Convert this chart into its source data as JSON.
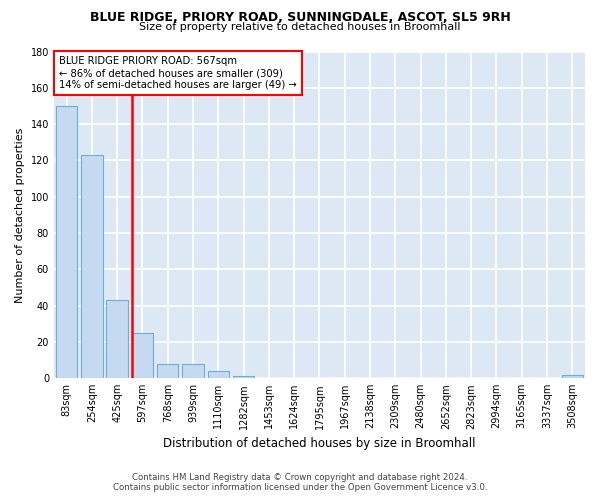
{
  "title": "BLUE RIDGE, PRIORY ROAD, SUNNINGDALE, ASCOT, SL5 9RH",
  "subtitle": "Size of property relative to detached houses in Broomhall",
  "xlabel": "Distribution of detached houses by size in Broomhall",
  "ylabel": "Number of detached properties",
  "bar_labels": [
    "83sqm",
    "254sqm",
    "425sqm",
    "597sqm",
    "768sqm",
    "939sqm",
    "1110sqm",
    "1282sqm",
    "1453sqm",
    "1624sqm",
    "1795sqm",
    "1967sqm",
    "2138sqm",
    "2309sqm",
    "2480sqm",
    "2652sqm",
    "2823sqm",
    "2994sqm",
    "3165sqm",
    "3337sqm",
    "3508sqm"
  ],
  "bar_values": [
    150,
    123,
    43,
    25,
    8,
    8,
    4,
    1,
    0,
    0,
    0,
    0,
    0,
    0,
    0,
    0,
    0,
    0,
    0,
    0,
    2
  ],
  "bar_color": "#c5d9f0",
  "bar_edge_color": "#6baed6",
  "red_line_index": 3,
  "annotation_title": "BLUE RIDGE PRIORY ROAD: 567sqm",
  "annotation_line2": "← 86% of detached houses are smaller (309)",
  "annotation_line3": "14% of semi-detached houses are larger (49) →",
  "ylim": [
    0,
    180
  ],
  "yticks": [
    0,
    20,
    40,
    60,
    80,
    100,
    120,
    140,
    160,
    180
  ],
  "background_color": "#dde8f5",
  "grid_color": "#ffffff",
  "footer_line1": "Contains HM Land Registry data © Crown copyright and database right 2024.",
  "footer_line2": "Contains public sector information licensed under the Open Government Licence v3.0."
}
